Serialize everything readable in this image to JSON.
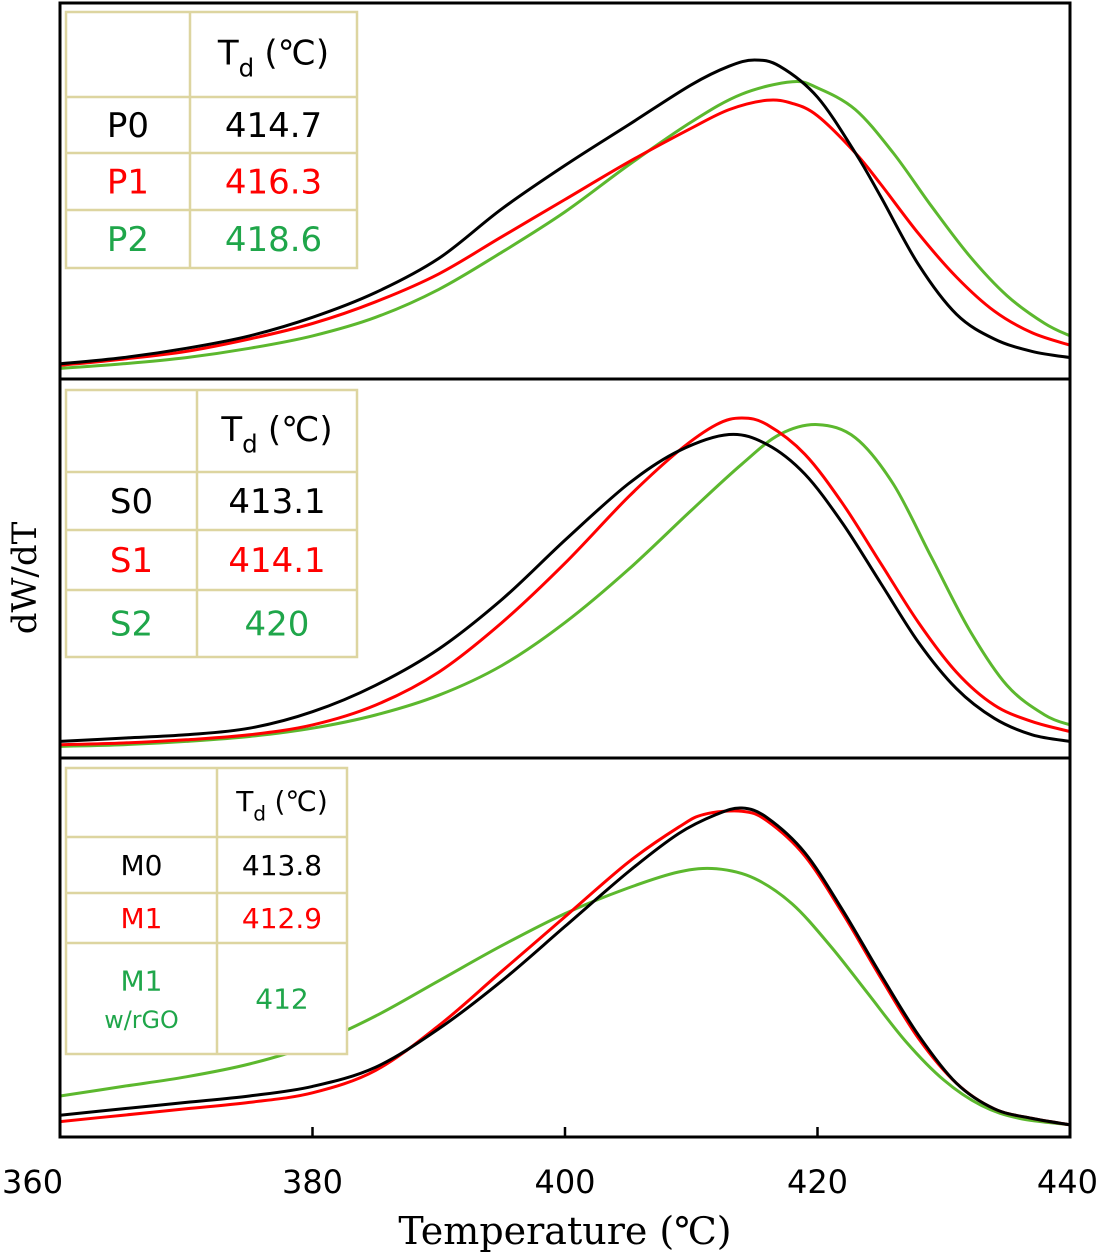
{
  "chart_data": {
    "type": "line",
    "ylabel": "dW/dT",
    "xlabel": "Temperature (℃)",
    "xlim": [
      360,
      440
    ],
    "x_ticks": [
      "360",
      "380",
      "400",
      "420",
      "440"
    ],
    "grid": false,
    "colors": {
      "black": "#000000",
      "red": "#ff0000",
      "green": "#5cb82e",
      "table_green": "#1fa64a",
      "table_border": "#ddd5a0"
    },
    "table_header": {
      "symbol": "T",
      "subscript": "d",
      "unit": "(℃)"
    },
    "panels": [
      {
        "table": [
          {
            "name": "P0",
            "td": "414.7",
            "color": "black"
          },
          {
            "name": "P1",
            "td": "416.3",
            "color": "red"
          },
          {
            "name": "P2",
            "td": "418.6",
            "color": "green"
          }
        ],
        "series": [
          {
            "legend_label": "P0",
            "color": "black",
            "x": [
              360,
              365,
              370,
              375,
              380,
              385,
              390,
              395,
              400,
              405,
              410,
              413,
              415,
              417,
              420,
              423,
              425,
              428,
              431,
              434,
              437,
              440
            ],
            "y": [
              0.02,
              0.04,
              0.07,
              0.11,
              0.17,
              0.25,
              0.36,
              0.52,
              0.66,
              0.79,
              0.92,
              0.98,
              1.0,
              0.98,
              0.88,
              0.7,
              0.56,
              0.34,
              0.18,
              0.1,
              0.06,
              0.04
            ]
          },
          {
            "legend_label": "P1",
            "color": "red",
            "x": [
              360,
              365,
              370,
              375,
              380,
              385,
              390,
              395,
              400,
              405,
              410,
              413,
              416,
              418,
              420,
              423,
              425,
              428,
              431,
              434,
              437,
              440
            ],
            "y": [
              0.015,
              0.035,
              0.06,
              0.1,
              0.15,
              0.22,
              0.31,
              0.43,
              0.55,
              0.67,
              0.78,
              0.84,
              0.87,
              0.86,
              0.82,
              0.7,
              0.6,
              0.44,
              0.3,
              0.19,
              0.12,
              0.08
            ]
          },
          {
            "legend_label": "P2",
            "color": "green",
            "x": [
              360,
              365,
              370,
              375,
              380,
              385,
              390,
              395,
              400,
              405,
              410,
              414,
              418,
              420,
              423,
              426,
              429,
              432,
              435,
              438,
              440
            ],
            "y": [
              0.005,
              0.02,
              0.04,
              0.07,
              0.11,
              0.17,
              0.26,
              0.38,
              0.51,
              0.66,
              0.8,
              0.89,
              0.93,
              0.91,
              0.84,
              0.7,
              0.53,
              0.37,
              0.24,
              0.15,
              0.11
            ]
          }
        ]
      },
      {
        "table": [
          {
            "name": "S0",
            "td": "413.1",
            "color": "black"
          },
          {
            "name": "S1",
            "td": "414.1",
            "color": "red"
          },
          {
            "name": "S2",
            "td": "420",
            "color": "green"
          }
        ],
        "series": [
          {
            "legend_label": "S0",
            "color": "black",
            "x": [
              360,
              365,
              370,
              375,
              380,
              385,
              390,
              395,
              400,
              405,
              409,
              413,
              416,
              419,
              422,
              425,
              428,
              431,
              434,
              437,
              440
            ],
            "y": [
              0.02,
              0.03,
              0.04,
              0.06,
              0.11,
              0.19,
              0.3,
              0.45,
              0.63,
              0.8,
              0.9,
              0.95,
              0.92,
              0.83,
              0.68,
              0.5,
              0.32,
              0.18,
              0.09,
              0.04,
              0.02
            ]
          },
          {
            "legend_label": "S1",
            "color": "red",
            "x": [
              360,
              365,
              370,
              375,
              380,
              385,
              390,
              395,
              400,
              405,
              409,
              412,
              414,
              416,
              419,
              422,
              425,
              428,
              431,
              434,
              437,
              440
            ],
            "y": [
              0.01,
              0.015,
              0.025,
              0.04,
              0.07,
              0.13,
              0.23,
              0.38,
              0.56,
              0.76,
              0.9,
              0.98,
              1.0,
              0.98,
              0.89,
              0.74,
              0.56,
              0.38,
              0.23,
              0.13,
              0.08,
              0.05
            ]
          },
          {
            "legend_label": "S2",
            "color": "green",
            "x": [
              360,
              365,
              370,
              375,
              380,
              385,
              390,
              395,
              400,
              405,
              410,
              414,
              417,
              420,
              423,
              426,
              429,
              432,
              435,
              438,
              440
            ],
            "y": [
              0.005,
              0.01,
              0.02,
              0.035,
              0.06,
              0.1,
              0.16,
              0.25,
              0.38,
              0.54,
              0.72,
              0.86,
              0.95,
              0.98,
              0.94,
              0.8,
              0.58,
              0.36,
              0.19,
              0.1,
              0.07
            ]
          }
        ]
      },
      {
        "table": [
          {
            "name": "M0",
            "td": "413.8",
            "color": "black"
          },
          {
            "name": "M1",
            "td": "412.9",
            "color": "red"
          },
          {
            "name": "M1 w/rGO",
            "name_line1": "M1",
            "name_line2": "w/rGO",
            "td": "412",
            "color": "green"
          }
        ],
        "series": [
          {
            "legend_label": "M0",
            "color": "black",
            "x": [
              360,
              365,
              370,
              375,
              380,
              385,
              390,
              395,
              400,
              405,
              409,
              412,
              414,
              416,
              419,
              422,
              425,
              428,
              431,
              434,
              437,
              440
            ],
            "y": [
              0.04,
              0.06,
              0.08,
              0.1,
              0.13,
              0.19,
              0.31,
              0.46,
              0.63,
              0.8,
              0.92,
              0.98,
              1.0,
              0.97,
              0.86,
              0.68,
              0.48,
              0.29,
              0.14,
              0.06,
              0.03,
              0.01
            ]
          },
          {
            "legend_label": "M1",
            "color": "red",
            "x": [
              360,
              365,
              370,
              375,
              380,
              385,
              390,
              395,
              400,
              405,
              409,
              411,
              414,
              416,
              419,
              422,
              425,
              428,
              431,
              434,
              437,
              440
            ],
            "y": [
              0.02,
              0.04,
              0.06,
              0.08,
              0.11,
              0.18,
              0.32,
              0.49,
              0.66,
              0.83,
              0.94,
              0.98,
              0.99,
              0.96,
              0.85,
              0.67,
              0.47,
              0.28,
              0.14,
              0.06,
              0.03,
              0.01
            ]
          },
          {
            "legend_label": "M1 w/rGO",
            "color": "green",
            "x": [
              360,
              365,
              370,
              375,
              380,
              385,
              390,
              395,
              400,
              405,
              409,
              412,
              415,
              418,
              421,
              424,
              427,
              430,
              433,
              436,
              440
            ],
            "y": [
              0.1,
              0.13,
              0.16,
              0.2,
              0.26,
              0.35,
              0.46,
              0.57,
              0.67,
              0.75,
              0.8,
              0.81,
              0.78,
              0.7,
              0.57,
              0.42,
              0.27,
              0.15,
              0.07,
              0.03,
              0.01
            ]
          }
        ]
      }
    ]
  }
}
